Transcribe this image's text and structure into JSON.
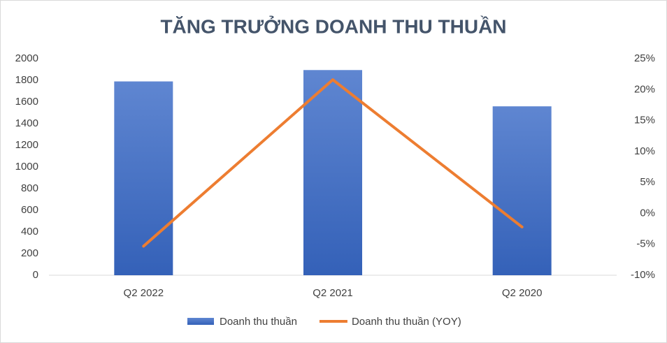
{
  "chart_data": {
    "type": "bar-line",
    "title": "TĂNG TRƯỞNG DOANH THU THUẦN",
    "categories": [
      "Q2 2022",
      "Q2 2021",
      "Q2 2020"
    ],
    "series": [
      {
        "name": "Doanh thu thuần",
        "type": "bar",
        "color": "#4472c4",
        "values": [
          1790,
          1895,
          1560
        ]
      },
      {
        "name": "Doanh thu thuần (YOY)",
        "type": "line",
        "axis": "y2",
        "color": "#ed7d31",
        "values": [
          -5.3,
          21.6,
          -2.2
        ]
      }
    ],
    "ylim": [
      0,
      2000
    ],
    "yticks": [
      0,
      200,
      400,
      600,
      800,
      1000,
      1200,
      1400,
      1600,
      1800,
      2000
    ],
    "y2lim": [
      -10,
      25
    ],
    "y2ticks": [
      {
        "value": -10,
        "label": "-10%"
      },
      {
        "value": -5,
        "label": "-5%"
      },
      {
        "value": 0,
        "label": "0%"
      },
      {
        "value": 5,
        "label": "5%"
      },
      {
        "value": 10,
        "label": "10%"
      },
      {
        "value": 15,
        "label": "15%"
      },
      {
        "value": 20,
        "label": "20%"
      },
      {
        "value": 25,
        "label": "25%"
      }
    ],
    "legend": "bottom"
  }
}
